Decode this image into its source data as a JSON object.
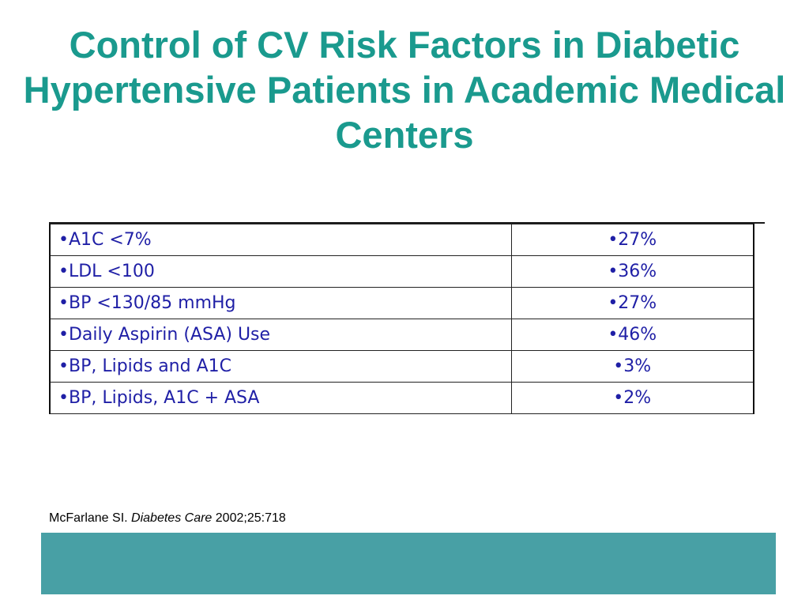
{
  "slide": {
    "title": "Control of CV Risk Factors in Diabetic Hypertensive Patients in Academic Medical Centers"
  },
  "table": {
    "rows": [
      {
        "label": "•A1C <7%",
        "value": "•27%"
      },
      {
        "label": "•LDL <100",
        "value": "•36%"
      },
      {
        "label": "•BP <130/85 mmHg",
        "value": "•27%"
      },
      {
        "label": "•Daily Aspirin (ASA) Use",
        "value": "•46%"
      },
      {
        "label": "•BP, Lipids and A1C",
        "value": "•3%"
      },
      {
        "label": "•BP, Lipids, A1C + ASA",
        "value": "•2%"
      }
    ]
  },
  "citation": {
    "author": "McFarlane SI.",
    "journal": "Diabetes Care",
    "details": "2002;25:718"
  },
  "colors": {
    "title": "#1a9a8e",
    "table_text": "#1f1fa6",
    "footer_band": "#48a0a5"
  }
}
